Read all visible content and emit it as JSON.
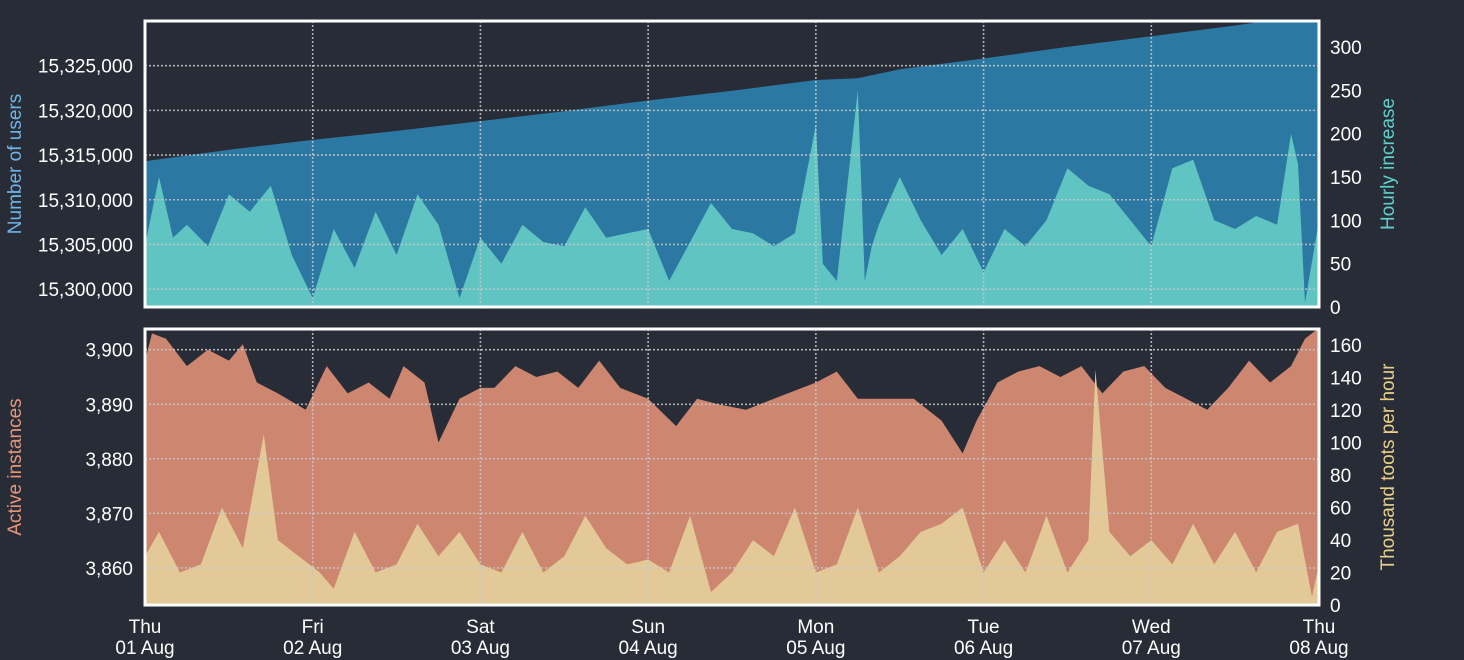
{
  "colors": {
    "background": "#282c37",
    "users_area": "#2b79a3",
    "hourly_area": "#5fc4c2",
    "instances_area": "#cd8670",
    "toots_area": "#e3c997",
    "axis_text": "#ffffff",
    "users_label": "#6fb4e6",
    "hourly_label": "#5fd1cc",
    "instances_label": "#e6967a",
    "toots_label": "#e8d089",
    "frame": "#ffffff",
    "grid": "#c8c8c8"
  },
  "x_axis": {
    "range": [
      "2019-08-01",
      "2019-08-08"
    ],
    "ticks": [
      {
        "day": "Thu",
        "date": "01 Aug"
      },
      {
        "day": "Fri",
        "date": "02 Aug"
      },
      {
        "day": "Sat",
        "date": "03 Aug"
      },
      {
        "day": "Sun",
        "date": "04 Aug"
      },
      {
        "day": "Mon",
        "date": "05 Aug"
      },
      {
        "day": "Tue",
        "date": "06 Aug"
      },
      {
        "day": "Wed",
        "date": "07 Aug"
      },
      {
        "day": "Thu",
        "date": "08 Aug"
      }
    ]
  },
  "chart_data": [
    {
      "type": "area",
      "ylabel": "Number of users",
      "y2label": "Hourly increase",
      "ylim": [
        15298000,
        15330000
      ],
      "y2lim": [
        0,
        330
      ],
      "yticks": [
        "15,300,000",
        "15,305,000",
        "15,310,000",
        "15,315,000",
        "15,320,000",
        "15,325,000"
      ],
      "yticks_values": [
        15300000,
        15305000,
        15310000,
        15315000,
        15320000,
        15325000
      ],
      "y2ticks": [
        0,
        50,
        100,
        150,
        200,
        250,
        300
      ],
      "grid": true,
      "series": [
        {
          "axis": "left",
          "x": [
            "2019-08-01T00:00",
            "2019-08-01T12:00",
            "2019-08-02T00:00",
            "2019-08-02T12:00",
            "2019-08-03T00:00",
            "2019-08-03T12:00",
            "2019-08-04T00:00",
            "2019-08-04T12:00",
            "2019-08-05T00:00",
            "2019-08-05T06:00",
            "2019-08-05T12:00",
            "2019-08-06T00:00",
            "2019-08-06T12:00",
            "2019-08-07T00:00",
            "2019-08-07T12:00",
            "2019-08-08T00:00"
          ],
          "values": [
            15314300,
            15315600,
            15316700,
            15317700,
            15318800,
            15319900,
            15321100,
            15322200,
            15323400,
            15323600,
            15324600,
            15325800,
            15327100,
            15328300,
            15329500,
            15330900
          ]
        },
        {
          "axis": "right",
          "x": [
            "2019-08-01T00:00",
            "2019-08-01T02:00",
            "2019-08-01T04:00",
            "2019-08-01T06:00",
            "2019-08-01T09:00",
            "2019-08-01T12:00",
            "2019-08-01T15:00",
            "2019-08-01T18:00",
            "2019-08-01T21:00",
            "2019-08-02T00:00",
            "2019-08-02T03:00",
            "2019-08-02T06:00",
            "2019-08-02T09:00",
            "2019-08-02T12:00",
            "2019-08-02T15:00",
            "2019-08-02T18:00",
            "2019-08-02T21:00",
            "2019-08-03T00:00",
            "2019-08-03T03:00",
            "2019-08-03T06:00",
            "2019-08-03T09:00",
            "2019-08-03T12:00",
            "2019-08-03T15:00",
            "2019-08-03T18:00",
            "2019-08-03T21:00",
            "2019-08-04T00:00",
            "2019-08-04T03:00",
            "2019-08-04T06:00",
            "2019-08-04T09:00",
            "2019-08-04T12:00",
            "2019-08-04T15:00",
            "2019-08-04T18:00",
            "2019-08-04T21:00",
            "2019-08-05T00:00",
            "2019-08-05T01:00",
            "2019-08-05T03:00",
            "2019-08-05T06:00",
            "2019-08-05T07:00",
            "2019-08-05T08:00",
            "2019-08-05T09:00",
            "2019-08-05T12:00",
            "2019-08-05T15:00",
            "2019-08-05T18:00",
            "2019-08-05T21:00",
            "2019-08-06T00:00",
            "2019-08-06T03:00",
            "2019-08-06T06:00",
            "2019-08-06T09:00",
            "2019-08-06T12:00",
            "2019-08-06T15:00",
            "2019-08-06T18:00",
            "2019-08-06T21:00",
            "2019-08-07T00:00",
            "2019-08-07T03:00",
            "2019-08-07T06:00",
            "2019-08-07T09:00",
            "2019-08-07T12:00",
            "2019-08-07T15:00",
            "2019-08-07T18:00",
            "2019-08-07T20:00",
            "2019-08-07T21:00",
            "2019-08-07T22:00",
            "2019-08-08T00:00"
          ],
          "values": [
            70,
            150,
            80,
            95,
            70,
            130,
            110,
            140,
            60,
            10,
            90,
            45,
            110,
            60,
            130,
            95,
            10,
            80,
            50,
            95,
            75,
            70,
            115,
            80,
            85,
            90,
            30,
            75,
            120,
            90,
            85,
            70,
            85,
            210,
            50,
            30,
            250,
            30,
            70,
            95,
            150,
            100,
            60,
            90,
            40,
            90,
            70,
            100,
            160,
            140,
            130,
            100,
            70,
            160,
            170,
            100,
            90,
            105,
            95,
            200,
            165,
            5,
            100
          ]
        }
      ]
    },
    {
      "type": "area",
      "ylabel": "Active instances",
      "y2label": "Thousand toots per hour",
      "ylim": [
        3853.2,
        3903.8
      ],
      "y2lim": [
        0,
        170
      ],
      "yticks": [
        "3,860",
        "3,870",
        "3,880",
        "3,890",
        "3,900"
      ],
      "yticks_values": [
        3860,
        3870,
        3880,
        3890,
        3900
      ],
      "y2ticks": [
        0,
        20,
        40,
        60,
        80,
        100,
        120,
        140,
        160
      ],
      "grid": true,
      "series": [
        {
          "axis": "left",
          "x": [
            "2019-08-01T00:00",
            "2019-08-01T01:00",
            "2019-08-01T03:00",
            "2019-08-01T06:00",
            "2019-08-01T09:00",
            "2019-08-01T12:00",
            "2019-08-01T14:00",
            "2019-08-01T16:00",
            "2019-08-01T19:00",
            "2019-08-01T23:00",
            "2019-08-02T02:00",
            "2019-08-02T05:00",
            "2019-08-02T08:00",
            "2019-08-02T11:00",
            "2019-08-02T13:00",
            "2019-08-02T16:00",
            "2019-08-02T18:00",
            "2019-08-02T21:00",
            "2019-08-03T00:00",
            "2019-08-03T02:00",
            "2019-08-03T05:00",
            "2019-08-03T08:00",
            "2019-08-03T11:00",
            "2019-08-03T14:00",
            "2019-08-03T17:00",
            "2019-08-03T20:00",
            "2019-08-04T00:00",
            "2019-08-04T04:00",
            "2019-08-04T07:00",
            "2019-08-04T10:00",
            "2019-08-04T14:00",
            "2019-08-04T18:00",
            "2019-08-05T00:00",
            "2019-08-05T03:00",
            "2019-08-05T06:00",
            "2019-08-05T09:00",
            "2019-08-05T14:00",
            "2019-08-05T18:00",
            "2019-08-05T21:00",
            "2019-08-05T23:00",
            "2019-08-06T02:00",
            "2019-08-06T05:00",
            "2019-08-06T08:00",
            "2019-08-06T11:00",
            "2019-08-06T14:00",
            "2019-08-06T17:00",
            "2019-08-06T20:00",
            "2019-08-06T23:00",
            "2019-08-07T02:00",
            "2019-08-07T05:00",
            "2019-08-07T08:00",
            "2019-08-07T11:00",
            "2019-08-07T14:00",
            "2019-08-07T17:00",
            "2019-08-07T20:00",
            "2019-08-07T22:00",
            "2019-08-08T00:00"
          ],
          "values": [
            3898,
            3903,
            3902,
            3897,
            3900,
            3898,
            3901,
            3894,
            3892,
            3889,
            3897,
            3892,
            3894,
            3891,
            3897,
            3894,
            3883,
            3891,
            3893,
            3893,
            3897,
            3895,
            3896,
            3893,
            3898,
            3893,
            3891,
            3886,
            3891,
            3890,
            3889,
            3891,
            3894,
            3896,
            3891,
            3891,
            3891,
            3887,
            3881,
            3887,
            3894,
            3896,
            3897,
            3895,
            3897,
            3892,
            3896,
            3897,
            3893,
            3891,
            3889,
            3893,
            3898,
            3894,
            3897,
            3902,
            3904
          ]
        },
        {
          "axis": "right",
          "x": [
            "2019-08-01T00:00",
            "2019-08-01T02:00",
            "2019-08-01T05:00",
            "2019-08-01T08:00",
            "2019-08-01T11:00",
            "2019-08-01T14:00",
            "2019-08-01T17:00",
            "2019-08-01T19:00",
            "2019-08-01T22:00",
            "2019-08-02T01:00",
            "2019-08-02T03:00",
            "2019-08-02T06:00",
            "2019-08-02T09:00",
            "2019-08-02T12:00",
            "2019-08-02T15:00",
            "2019-08-02T18:00",
            "2019-08-02T21:00",
            "2019-08-03T00:00",
            "2019-08-03T03:00",
            "2019-08-03T06:00",
            "2019-08-03T09:00",
            "2019-08-03T12:00",
            "2019-08-03T15:00",
            "2019-08-03T18:00",
            "2019-08-03T21:00",
            "2019-08-04T00:00",
            "2019-08-04T03:00",
            "2019-08-04T06:00",
            "2019-08-04T09:00",
            "2019-08-04T12:00",
            "2019-08-04T15:00",
            "2019-08-04T18:00",
            "2019-08-04T21:00",
            "2019-08-05T00:00",
            "2019-08-05T03:00",
            "2019-08-05T06:00",
            "2019-08-05T09:00",
            "2019-08-05T12:00",
            "2019-08-05T15:00",
            "2019-08-05T18:00",
            "2019-08-05T21:00",
            "2019-08-06T00:00",
            "2019-08-06T03:00",
            "2019-08-06T06:00",
            "2019-08-06T09:00",
            "2019-08-06T12:00",
            "2019-08-06T15:00",
            "2019-08-06T16:00",
            "2019-08-06T18:00",
            "2019-08-06T21:00",
            "2019-08-07T00:00",
            "2019-08-07T03:00",
            "2019-08-07T06:00",
            "2019-08-07T09:00",
            "2019-08-07T12:00",
            "2019-08-07T15:00",
            "2019-08-07T18:00",
            "2019-08-07T21:00",
            "2019-08-07T23:00",
            "2019-08-08T00:00"
          ],
          "values": [
            30,
            45,
            20,
            25,
            60,
            35,
            105,
            40,
            30,
            20,
            10,
            45,
            20,
            25,
            50,
            30,
            45,
            25,
            20,
            45,
            20,
            30,
            55,
            35,
            25,
            28,
            20,
            55,
            8,
            20,
            40,
            30,
            60,
            20,
            25,
            60,
            20,
            30,
            45,
            50,
            60,
            20,
            40,
            20,
            55,
            20,
            40,
            145,
            45,
            30,
            40,
            25,
            50,
            25,
            45,
            20,
            45,
            50,
            5,
            25
          ]
        }
      ]
    }
  ]
}
